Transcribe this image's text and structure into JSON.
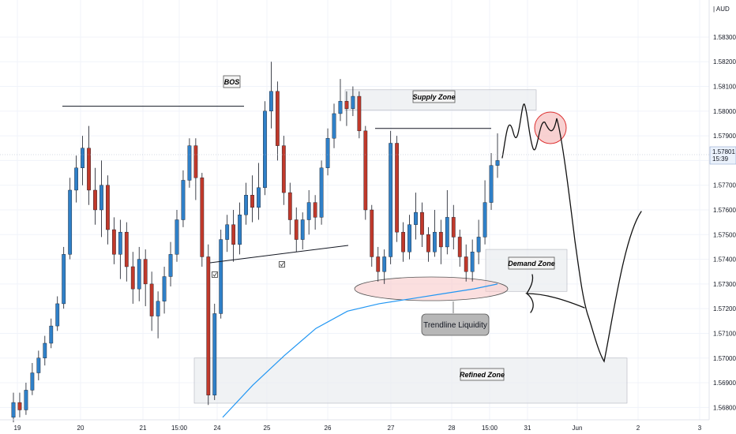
{
  "chart_data": {
    "type": "candlestick",
    "instrument_quote": "AUD",
    "last_price": "1.57801",
    "countdown": "15:39",
    "y_ticks": [
      1.568,
      1.569,
      1.57,
      1.571,
      1.572,
      1.573,
      1.574,
      1.575,
      1.576,
      1.577,
      1.578,
      1.579,
      1.58,
      1.581,
      1.582,
      1.583
    ],
    "ylim": [
      1.5675,
      1.5845
    ],
    "x_ticks": [
      "19",
      "20",
      "21",
      "15:00",
      "24",
      "25",
      "26",
      "27",
      "28",
      "15:00",
      "31",
      "Jun",
      "2",
      "3"
    ],
    "annotations": {
      "bos": "BOS",
      "supply_zone": "Supply Zone",
      "demand_zone": "Demand Zone",
      "refined_zone": "Refined Zone",
      "trendline_liquidity": "Trendline Liquidity"
    },
    "levels": {
      "bos_level": 1.5802,
      "equal_highs": 1.5793,
      "supply_zone": [
        1.5801,
        1.5808
      ],
      "demand_zone": [
        1.5727,
        1.5744
      ],
      "refined_zone": [
        1.5683,
        1.57
      ],
      "moving_average": [
        1.5676,
        1.5689,
        1.5701,
        1.5712,
        1.5719,
        1.5722,
        1.5724,
        1.5726,
        1.5728,
        1.573
      ]
    },
    "candles": [
      [
        1.5676,
        1.5682,
        1.5674,
        1.5686
      ],
      [
        1.5682,
        1.5679,
        1.5676,
        1.5686
      ],
      [
        1.5679,
        1.5687,
        1.5677,
        1.569
      ],
      [
        1.5687,
        1.5694,
        1.5685,
        1.5698
      ],
      [
        1.5694,
        1.57,
        1.5691,
        1.5703
      ],
      [
        1.57,
        1.5706,
        1.5697,
        1.5709
      ],
      [
        1.5706,
        1.5713,
        1.5704,
        1.5716
      ],
      [
        1.5713,
        1.5722,
        1.5711,
        1.5725
      ],
      [
        1.5722,
        1.5742,
        1.572,
        1.5745
      ],
      [
        1.5742,
        1.5768,
        1.574,
        1.5773
      ],
      [
        1.5768,
        1.5777,
        1.5763,
        1.5782
      ],
      [
        1.5777,
        1.5785,
        1.577,
        1.579
      ],
      [
        1.5785,
        1.5768,
        1.5762,
        1.5794
      ],
      [
        1.5768,
        1.576,
        1.5754,
        1.5777
      ],
      [
        1.576,
        1.577,
        1.5749,
        1.578
      ],
      [
        1.577,
        1.5752,
        1.5746,
        1.5774
      ],
      [
        1.5752,
        1.5742,
        1.5738,
        1.5757
      ],
      [
        1.5742,
        1.5751,
        1.5732,
        1.5756
      ],
      [
        1.5751,
        1.5737,
        1.5731,
        1.5755
      ],
      [
        1.5737,
        1.5728,
        1.5722,
        1.5743
      ],
      [
        1.5728,
        1.574,
        1.5723,
        1.5745
      ],
      [
        1.574,
        1.573,
        1.5721,
        1.5744
      ],
      [
        1.573,
        1.5717,
        1.5711,
        1.5735
      ],
      [
        1.5717,
        1.5723,
        1.5708,
        1.5727
      ],
      [
        1.5723,
        1.5733,
        1.5718,
        1.5737
      ],
      [
        1.5733,
        1.5742,
        1.5729,
        1.5747
      ],
      [
        1.5742,
        1.5756,
        1.5739,
        1.576
      ],
      [
        1.5756,
        1.5772,
        1.5753,
        1.5776
      ],
      [
        1.5772,
        1.5786,
        1.5769,
        1.5789
      ],
      [
        1.5786,
        1.5773,
        1.5764,
        1.5789
      ],
      [
        1.5773,
        1.5741,
        1.5737,
        1.5775
      ],
      [
        1.5741,
        1.5685,
        1.5681,
        1.5746
      ],
      [
        1.5685,
        1.5718,
        1.5683,
        1.5722
      ],
      [
        1.5718,
        1.5748,
        1.5716,
        1.5752
      ],
      [
        1.5748,
        1.5754,
        1.5743,
        1.5758
      ],
      [
        1.5754,
        1.5746,
        1.5739,
        1.576
      ],
      [
        1.5746,
        1.5758,
        1.5742,
        1.5763
      ],
      [
        1.5758,
        1.5766,
        1.5754,
        1.5771
      ],
      [
        1.5766,
        1.5761,
        1.5755,
        1.5774
      ],
      [
        1.5761,
        1.5769,
        1.5756,
        1.5779
      ],
      [
        1.5769,
        1.58,
        1.5766,
        1.5804
      ],
      [
        1.58,
        1.5808,
        1.5793,
        1.582
      ],
      [
        1.5808,
        1.5786,
        1.578,
        1.5812
      ],
      [
        1.5786,
        1.5767,
        1.5762,
        1.579
      ],
      [
        1.5767,
        1.5756,
        1.575,
        1.5771
      ],
      [
        1.5756,
        1.5748,
        1.5743,
        1.5761
      ],
      [
        1.5748,
        1.5756,
        1.5744,
        1.5759
      ],
      [
        1.5756,
        1.5763,
        1.575,
        1.5768
      ],
      [
        1.5763,
        1.5757,
        1.5752,
        1.5766
      ],
      [
        1.5757,
        1.5777,
        1.5754,
        1.578
      ],
      [
        1.5777,
        1.5789,
        1.5774,
        1.5793
      ],
      [
        1.5789,
        1.5799,
        1.5785,
        1.5803
      ],
      [
        1.5799,
        1.5804,
        1.5796,
        1.5813
      ],
      [
        1.5804,
        1.5801,
        1.5794,
        1.5808
      ],
      [
        1.5801,
        1.5806,
        1.5798,
        1.581
      ],
      [
        1.5806,
        1.5792,
        1.5789,
        1.5808
      ],
      [
        1.5792,
        1.576,
        1.5756,
        1.5794
      ],
      [
        1.576,
        1.5741,
        1.5737,
        1.5762
      ],
      [
        1.5741,
        1.5735,
        1.5731,
        1.5745
      ],
      [
        1.5735,
        1.5741,
        1.573,
        1.5744
      ],
      [
        1.5741,
        1.5787,
        1.5738,
        1.5792
      ],
      [
        1.5787,
        1.5751,
        1.5747,
        1.579
      ],
      [
        1.5751,
        1.5743,
        1.5739,
        1.5755
      ],
      [
        1.5743,
        1.5754,
        1.574,
        1.5758
      ],
      [
        1.5754,
        1.5759,
        1.5748,
        1.5767
      ],
      [
        1.5759,
        1.575,
        1.5745,
        1.5763
      ],
      [
        1.575,
        1.5743,
        1.5739,
        1.5753
      ],
      [
        1.5743,
        1.5751,
        1.5741,
        1.576
      ],
      [
        1.5751,
        1.5745,
        1.5738,
        1.5756
      ],
      [
        1.5745,
        1.5757,
        1.5742,
        1.5768
      ],
      [
        1.5757,
        1.5749,
        1.5744,
        1.5762
      ],
      [
        1.5749,
        1.5741,
        1.5737,
        1.5752
      ],
      [
        1.5741,
        1.5735,
        1.5731,
        1.5746
      ],
      [
        1.5735,
        1.5743,
        1.5731,
        1.5748
      ],
      [
        1.5743,
        1.5749,
        1.5738,
        1.5756
      ],
      [
        1.5749,
        1.5763,
        1.5746,
        1.5772
      ],
      [
        1.5763,
        1.5778,
        1.576,
        1.5783
      ],
      [
        1.5778,
        1.578,
        1.5773,
        1.5791
      ]
    ]
  }
}
